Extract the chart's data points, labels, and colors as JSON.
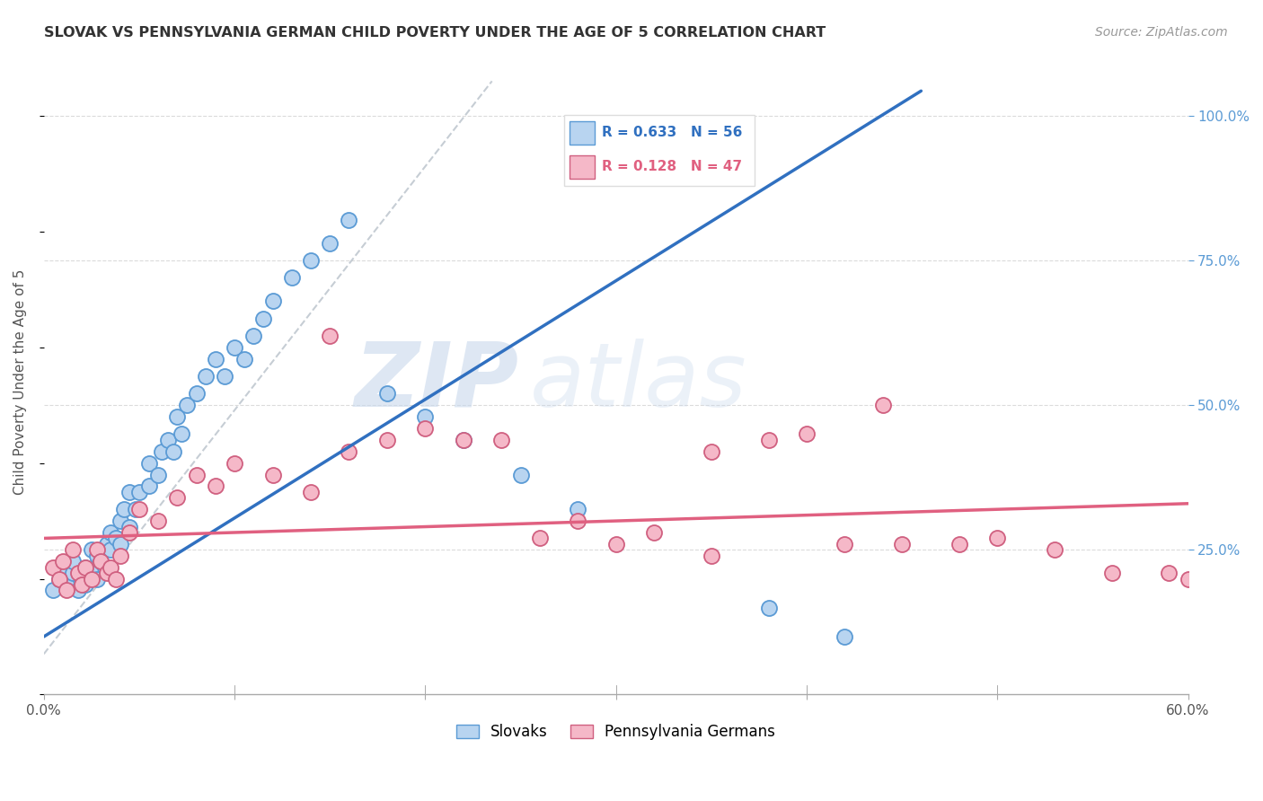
{
  "title": "SLOVAK VS PENNSYLVANIA GERMAN CHILD POVERTY UNDER THE AGE OF 5 CORRELATION CHART",
  "source": "Source: ZipAtlas.com",
  "ylabel": "Child Poverty Under the Age of 5",
  "xlim": [
    0.0,
    0.6
  ],
  "ylim": [
    0.0,
    1.08
  ],
  "ytick_vals": [
    0.25,
    0.5,
    0.75,
    1.0
  ],
  "ytick_labels": [
    "25.0%",
    "50.0%",
    "75.0%",
    "100.0%"
  ],
  "xtick_vals": [
    0.0,
    0.6
  ],
  "xtick_labels": [
    "0.0%",
    "60.0%"
  ],
  "grid_color": "#cccccc",
  "bg_color": "#ffffff",
  "slovak_face": "#b8d4f0",
  "slovak_edge": "#5b9bd5",
  "pa_face": "#f5b8c8",
  "pa_edge": "#d06080",
  "blue_line": "#3070c0",
  "pink_line": "#e06080",
  "dash_line": "#c0c8d0",
  "R_s": "0.633",
  "N_s": "56",
  "R_p": "0.128",
  "N_p": "47",
  "sk_slope": 2.05,
  "sk_intercept": 0.1,
  "pa_slope": 0.1,
  "pa_intercept": 0.27,
  "legend_s": "Slovaks",
  "legend_p": "Pennsylvania Germans",
  "watermark1": "ZIP",
  "watermark2": "atlas",
  "watermark_color1": "#c8d8ec",
  "watermark_color2": "#c8d8ec",
  "title_fontsize": 11.5,
  "source_fontsize": 10,
  "tick_fontsize": 11,
  "ylabel_fontsize": 11,
  "slovak_x": [
    0.005,
    0.008,
    0.01,
    0.012,
    0.015,
    0.015,
    0.018,
    0.02,
    0.022,
    0.022,
    0.025,
    0.025,
    0.028,
    0.028,
    0.03,
    0.032,
    0.033,
    0.035,
    0.035,
    0.038,
    0.04,
    0.04,
    0.042,
    0.045,
    0.045,
    0.048,
    0.05,
    0.055,
    0.055,
    0.06,
    0.062,
    0.065,
    0.068,
    0.07,
    0.072,
    0.075,
    0.08,
    0.085,
    0.09,
    0.095,
    0.1,
    0.105,
    0.11,
    0.115,
    0.12,
    0.13,
    0.14,
    0.15,
    0.16,
    0.18,
    0.2,
    0.22,
    0.25,
    0.28,
    0.38,
    0.42
  ],
  "slovak_y": [
    0.18,
    0.2,
    0.22,
    0.19,
    0.21,
    0.23,
    0.18,
    0.2,
    0.19,
    0.22,
    0.25,
    0.21,
    0.24,
    0.2,
    0.23,
    0.22,
    0.26,
    0.28,
    0.25,
    0.27,
    0.3,
    0.26,
    0.32,
    0.29,
    0.35,
    0.32,
    0.35,
    0.4,
    0.36,
    0.38,
    0.42,
    0.44,
    0.42,
    0.48,
    0.45,
    0.5,
    0.52,
    0.55,
    0.58,
    0.55,
    0.6,
    0.58,
    0.62,
    0.65,
    0.68,
    0.72,
    0.75,
    0.78,
    0.82,
    0.52,
    0.48,
    0.44,
    0.38,
    0.32,
    0.15,
    0.1
  ],
  "pa_german_x": [
    0.005,
    0.008,
    0.01,
    0.012,
    0.015,
    0.018,
    0.02,
    0.022,
    0.025,
    0.028,
    0.03,
    0.033,
    0.035,
    0.038,
    0.04,
    0.045,
    0.05,
    0.06,
    0.07,
    0.08,
    0.09,
    0.1,
    0.12,
    0.14,
    0.16,
    0.18,
    0.2,
    0.22,
    0.24,
    0.26,
    0.28,
    0.3,
    0.32,
    0.35,
    0.38,
    0.4,
    0.42,
    0.45,
    0.48,
    0.5,
    0.53,
    0.56,
    0.59,
    0.6,
    0.44,
    0.15,
    0.35
  ],
  "pa_german_y": [
    0.22,
    0.2,
    0.23,
    0.18,
    0.25,
    0.21,
    0.19,
    0.22,
    0.2,
    0.25,
    0.23,
    0.21,
    0.22,
    0.2,
    0.24,
    0.28,
    0.32,
    0.3,
    0.34,
    0.38,
    0.36,
    0.4,
    0.38,
    0.35,
    0.42,
    0.44,
    0.46,
    0.44,
    0.44,
    0.27,
    0.3,
    0.26,
    0.28,
    0.42,
    0.44,
    0.45,
    0.26,
    0.26,
    0.26,
    0.27,
    0.25,
    0.21,
    0.21,
    0.2,
    0.5,
    0.62,
    0.24
  ]
}
